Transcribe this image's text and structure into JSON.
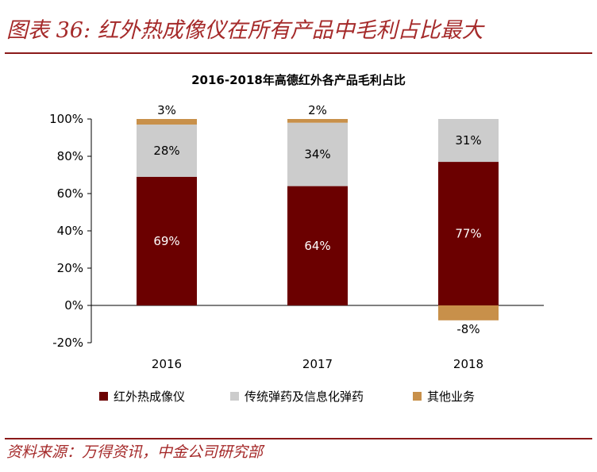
{
  "figure": {
    "title": "图表 36: 红外热成像仪在所有产品中毛利占比最大",
    "source": "资料来源：万得资讯，中金公司研究部"
  },
  "chart_data": {
    "type": "bar",
    "stacked": true,
    "title": "2016-2018年高德红外各产品毛利占比",
    "categories": [
      "2016",
      "2017",
      "2018"
    ],
    "series": [
      {
        "name": "红外热成像仪",
        "values": [
          69,
          64,
          77
        ],
        "labels": [
          "69%",
          "64%",
          "77%"
        ],
        "color": "#6b0000"
      },
      {
        "name": "传统弹药及信息化弹药",
        "values": [
          28,
          34,
          31
        ],
        "labels": [
          "28%",
          "34%",
          "31%"
        ],
        "color": "#cccccc"
      },
      {
        "name": "其他业务",
        "values": [
          3,
          2,
          -8
        ],
        "labels": [
          "3%",
          "2%",
          "-8%"
        ],
        "color": "#c8904a"
      }
    ],
    "ylim": [
      -20,
      100
    ],
    "yticks": [
      "-20%",
      "0%",
      "20%",
      "40%",
      "60%",
      "80%",
      "100%"
    ],
    "legend": "bottom",
    "grid": false
  }
}
